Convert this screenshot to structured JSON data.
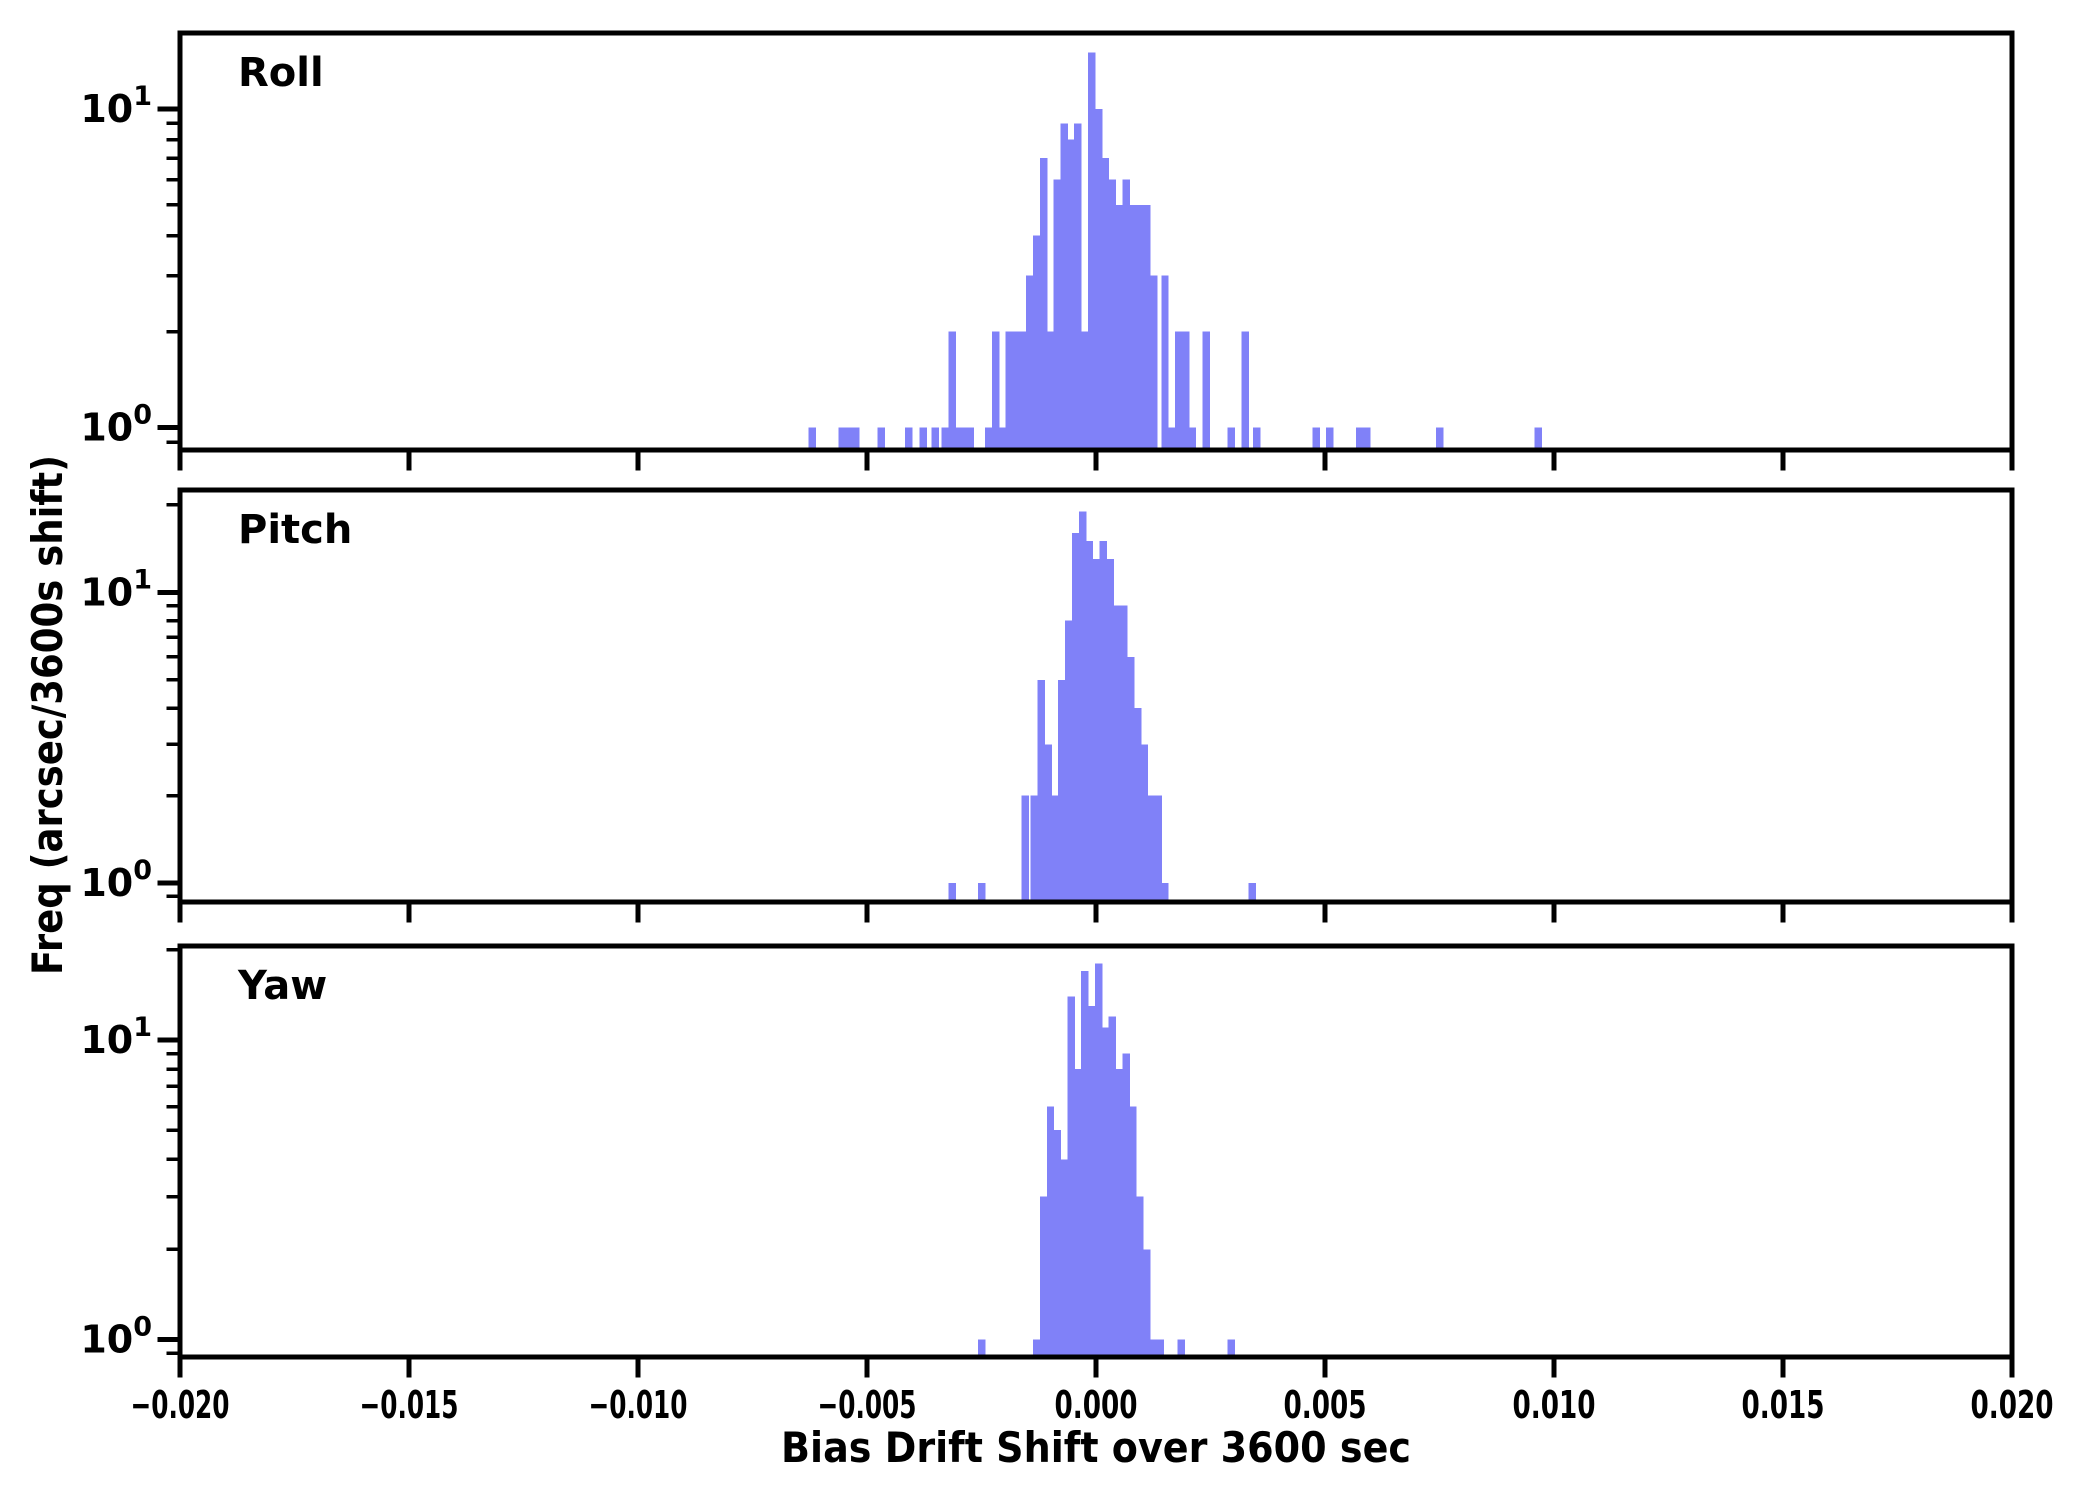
{
  "figure": {
    "xlabel": "Bias Drift Shift over 3600 sec",
    "ylabel": "Freq (arcsec/3600s shift)",
    "background_color": "#ffffff",
    "axis_color": "#000000",
    "bar_color": "#8081f8",
    "xticks": [
      {
        "v": -0.02,
        "label": "−0.020"
      },
      {
        "v": -0.015,
        "label": "−0.015"
      },
      {
        "v": -0.01,
        "label": "−0.010"
      },
      {
        "v": -0.005,
        "label": "−0.005"
      },
      {
        "v": 0.0,
        "label": "0.000"
      },
      {
        "v": 0.005,
        "label": "0.005"
      },
      {
        "v": 0.01,
        "label": "0.010"
      },
      {
        "v": 0.015,
        "label": "0.015"
      },
      {
        "v": 0.02,
        "label": "0.020"
      }
    ],
    "ytick_major": [
      {
        "v": 1,
        "base": "10",
        "exp": "0"
      },
      {
        "v": 10,
        "base": "10",
        "exp": "1"
      }
    ],
    "ytick_minor": [
      0.9,
      2,
      3,
      4,
      5,
      6,
      7,
      8,
      9,
      20
    ]
  },
  "chart_data": [
    {
      "type": "bar",
      "title": "Roll",
      "yscale": "log",
      "xlim": [
        -0.02,
        0.02
      ],
      "ylim": [
        0.85,
        17.3
      ],
      "bin_width": 0.00015,
      "legend": null,
      "grid": false,
      "bars": [
        [
          -0.0062,
          1
        ],
        [
          -0.00555,
          1
        ],
        [
          -0.0054,
          1
        ],
        [
          -0.00525,
          1
        ],
        [
          -0.0047,
          1
        ],
        [
          -0.0041,
          1
        ],
        [
          -0.00378,
          1
        ],
        [
          -0.00352,
          1
        ],
        [
          -0.0033,
          1
        ],
        [
          -0.00315,
          2
        ],
        [
          -0.003,
          1
        ],
        [
          -0.0029,
          1
        ],
        [
          -0.00275,
          1
        ],
        [
          -0.00235,
          1
        ],
        [
          -0.0022,
          2
        ],
        [
          -0.00205,
          1
        ],
        [
          -0.0019,
          2
        ],
        [
          -0.00175,
          2
        ],
        [
          -0.0016,
          2
        ],
        [
          -0.00145,
          3
        ],
        [
          -0.0013,
          4
        ],
        [
          -0.00115,
          7
        ],
        [
          -0.001,
          2
        ],
        [
          -0.00085,
          6
        ],
        [
          -0.0007,
          9
        ],
        [
          -0.00055,
          8
        ],
        [
          -0.0004,
          9
        ],
        [
          -0.00025,
          2
        ],
        [
          -0.0001,
          15
        ],
        [
          5e-05,
          10
        ],
        [
          0.0002,
          7
        ],
        [
          0.00035,
          6
        ],
        [
          0.0005,
          5
        ],
        [
          0.00065,
          6
        ],
        [
          0.0008,
          5
        ],
        [
          0.00095,
          5
        ],
        [
          0.0011,
          5
        ],
        [
          0.00125,
          3
        ],
        [
          0.0015,
          3
        ],
        [
          0.00165,
          1
        ],
        [
          0.0018,
          2
        ],
        [
          0.00195,
          2
        ],
        [
          0.0021,
          1
        ],
        [
          0.0024,
          2
        ],
        [
          0.00295,
          1
        ],
        [
          0.00325,
          2
        ],
        [
          0.0035,
          1
        ],
        [
          0.0048,
          1
        ],
        [
          0.0051,
          1
        ],
        [
          0.00575,
          1
        ],
        [
          0.0059,
          1
        ],
        [
          0.0075,
          1
        ],
        [
          0.00965,
          1
        ]
      ]
    },
    {
      "type": "bar",
      "title": "Pitch",
      "yscale": "log",
      "xlim": [
        -0.02,
        0.02
      ],
      "ylim": [
        0.86,
        22.5
      ],
      "bin_width": 0.00015,
      "legend": null,
      "grid": false,
      "bars": [
        [
          -0.00315,
          1
        ],
        [
          -0.0025,
          1
        ],
        [
          -0.00155,
          2
        ],
        [
          -0.00135,
          2
        ],
        [
          -0.0012,
          5
        ],
        [
          -0.00105,
          3
        ],
        [
          -0.0009,
          2
        ],
        [
          -0.00075,
          5
        ],
        [
          -0.0006,
          8
        ],
        [
          -0.00045,
          16
        ],
        [
          -0.0003,
          19
        ],
        [
          -0.00015,
          15
        ],
        [
          0.0,
          13
        ],
        [
          0.00015,
          15
        ],
        [
          0.0003,
          13
        ],
        [
          0.00045,
          9
        ],
        [
          0.0006,
          9
        ],
        [
          0.00075,
          6
        ],
        [
          0.0009,
          4
        ],
        [
          0.00105,
          3
        ],
        [
          0.0012,
          2
        ],
        [
          0.00135,
          2
        ],
        [
          0.0015,
          1
        ],
        [
          0.0034,
          1
        ]
      ]
    },
    {
      "type": "bar",
      "title": "Yaw",
      "yscale": "log",
      "xlim": [
        -0.02,
        0.02
      ],
      "ylim": [
        0.875,
        20.6
      ],
      "bin_width": 0.00015,
      "legend": null,
      "grid": false,
      "bars": [
        [
          -0.0025,
          1
        ],
        [
          -0.0013,
          1
        ],
        [
          -0.00115,
          3
        ],
        [
          -0.001,
          6
        ],
        [
          -0.00085,
          5
        ],
        [
          -0.0007,
          4
        ],
        [
          -0.00055,
          14
        ],
        [
          -0.0004,
          8
        ],
        [
          -0.00025,
          17
        ],
        [
          -0.0001,
          13
        ],
        [
          5e-05,
          18
        ],
        [
          0.0002,
          11
        ],
        [
          0.00035,
          12
        ],
        [
          0.0005,
          8
        ],
        [
          0.00065,
          9
        ],
        [
          0.0008,
          6
        ],
        [
          0.00095,
          3
        ],
        [
          0.0011,
          2
        ],
        [
          0.00125,
          1
        ],
        [
          0.0014,
          1
        ],
        [
          0.00185,
          1
        ],
        [
          0.00295,
          1
        ]
      ]
    }
  ]
}
